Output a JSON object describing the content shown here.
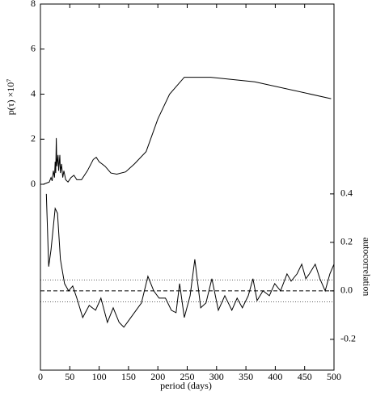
{
  "chart_data": {
    "type": "line",
    "ylabel": "p(τ) ×10⁷",
    "y2label": "autocorrelation",
    "xlabel": "period (days)",
    "xlim": [
      0,
      500
    ],
    "xticks": [
      0,
      50,
      100,
      150,
      200,
      250,
      300,
      350,
      400,
      450,
      500
    ],
    "ylim": [
      -8.25,
      8
    ],
    "yticks": [
      0,
      2,
      4,
      6,
      8
    ],
    "y2lim": [
      -0.327,
      1.183
    ],
    "y2ticks": [
      -0.2,
      0.0,
      0.2,
      0.4
    ],
    "reference_lines": [
      {
        "value": 0,
        "style": "dashed",
        "axis": "y2"
      },
      {
        "value": 0.045,
        "style": "dotted",
        "axis": "y2"
      },
      {
        "value": -0.045,
        "style": "dotted",
        "axis": "y2"
      }
    ],
    "series": [
      {
        "color": "#000000",
        "axis": "y",
        "x": [
          5,
          10,
          15,
          18,
          20,
          22,
          24,
          25,
          26,
          27,
          28,
          30,
          31,
          33,
          34,
          36,
          38,
          40,
          43,
          47,
          52,
          57,
          62,
          70,
          80,
          90,
          95,
          100,
          110,
          120,
          130,
          145,
          160,
          180,
          200,
          220,
          245,
          290,
          365,
          495
        ],
        "values": [
          0.0,
          0.05,
          0.1,
          0.3,
          0.15,
          0.6,
          0.3,
          1.0,
          0.5,
          2.05,
          0.8,
          1.3,
          0.6,
          1.3,
          0.5,
          0.9,
          0.3,
          0.6,
          0.2,
          0.1,
          0.3,
          0.4,
          0.2,
          0.2,
          0.6,
          1.1,
          1.2,
          1.0,
          0.8,
          0.5,
          0.45,
          0.55,
          0.9,
          1.45,
          2.9,
          4.0,
          4.75,
          4.75,
          4.55,
          3.8
        ]
      },
      {
        "color": "#000000",
        "axis": "y2",
        "x": [
          10,
          14,
          18,
          25,
          29,
          34,
          41,
          48,
          55,
          62,
          72,
          83,
          94,
          103,
          114,
          124,
          134,
          142,
          151,
          163,
          172,
          183,
          193,
          202,
          213,
          223,
          231,
          237,
          245,
          255,
          263,
          273,
          282,
          292,
          303,
          314,
          326,
          335,
          344,
          354,
          362,
          369,
          379,
          390,
          399,
          409,
          420,
          427,
          437,
          445,
          452,
          458,
          468,
          476,
          485,
          493,
          500
        ],
        "values": [
          0.4,
          0.1,
          0.17,
          0.34,
          0.32,
          0.13,
          0.03,
          0.0,
          0.02,
          -0.03,
          -0.11,
          -0.06,
          -0.08,
          -0.03,
          -0.13,
          -0.07,
          -0.13,
          -0.15,
          -0.12,
          -0.08,
          -0.05,
          0.06,
          0.0,
          -0.03,
          -0.03,
          -0.08,
          -0.09,
          0.03,
          -0.11,
          -0.02,
          0.13,
          -0.07,
          -0.05,
          0.05,
          -0.08,
          -0.02,
          -0.08,
          -0.03,
          -0.07,
          -0.02,
          0.05,
          -0.04,
          0.0,
          -0.02,
          0.03,
          0.0,
          0.07,
          0.04,
          0.07,
          0.11,
          0.05,
          0.07,
          0.11,
          0.05,
          0.0,
          0.07,
          0.11
        ]
      }
    ]
  }
}
